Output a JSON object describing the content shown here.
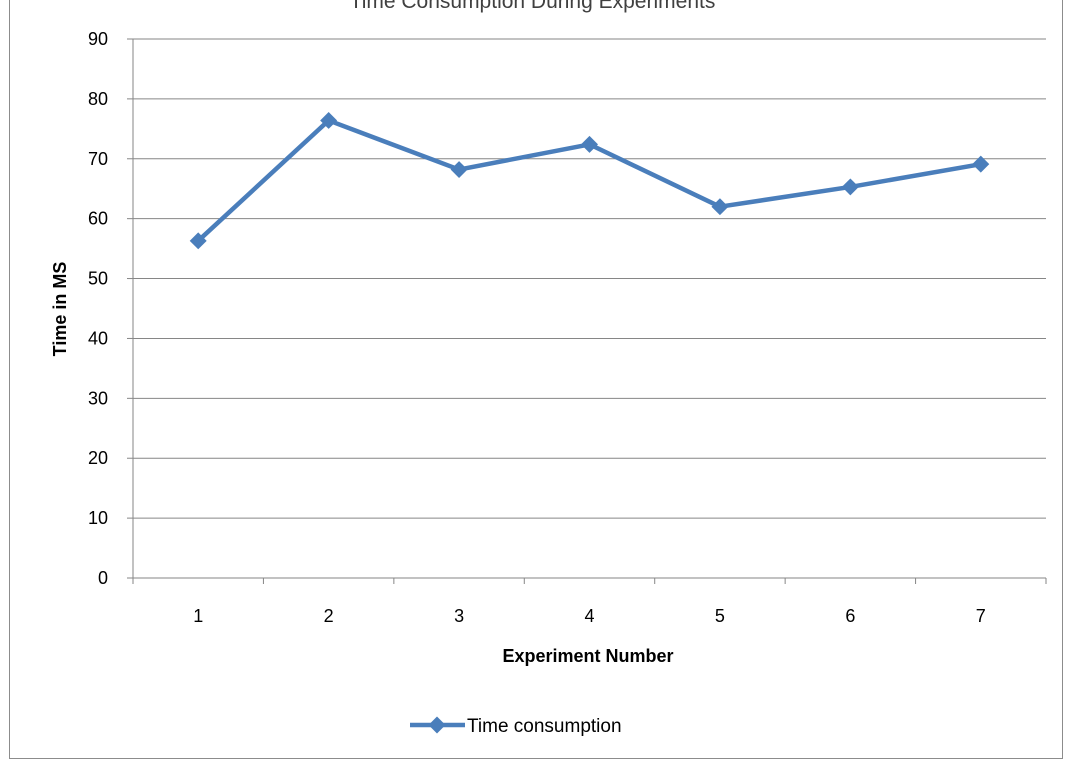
{
  "chart_data": {
    "type": "line",
    "title": "Time Consumption During Experiments",
    "xlabel": "Experiment Number",
    "ylabel": "Time in MS",
    "categories": [
      "1",
      "2",
      "3",
      "4",
      "5",
      "6",
      "7"
    ],
    "series": [
      {
        "name": "Time consumption",
        "values": [
          56.3,
          76.4,
          68.2,
          72.4,
          62.0,
          65.3,
          69.1
        ],
        "color": "#4a7ebb"
      }
    ],
    "ylim": [
      0,
      90
    ],
    "yticks": [
      "0",
      "10",
      "20",
      "30",
      "40",
      "50",
      "60",
      "70",
      "80",
      "90"
    ],
    "grid": true,
    "legend": "bottom"
  }
}
